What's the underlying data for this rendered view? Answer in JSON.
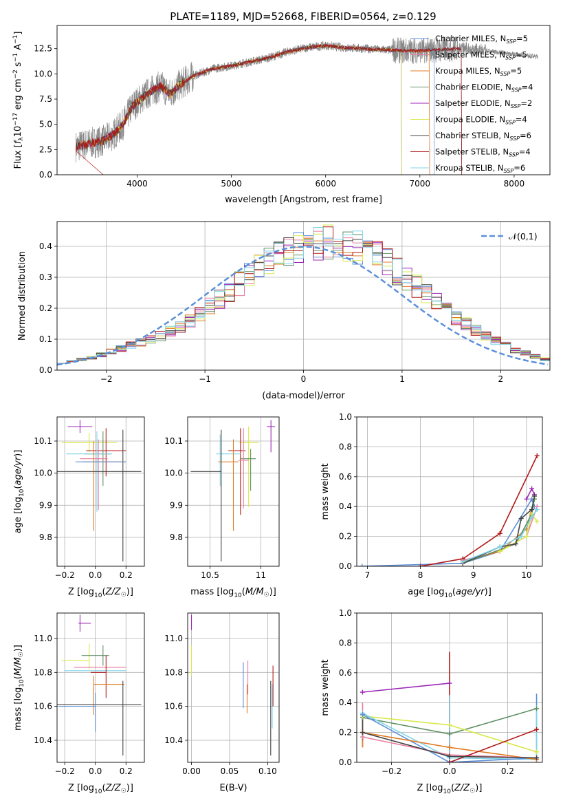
{
  "figure_title": "PLATE=1189, MJD=52668, FIBERID=0564, z=0.129",
  "colors": {
    "Chabrier MILES": "#5b8fd9",
    "Salpeter MILES": "#e87d9c",
    "Kroupa MILES": "#e07b22",
    "Chabrier ELODIE": "#5e8f63",
    "Salpeter ELODIE": "#9b27b5",
    "Kroupa ELODIE": "#d9e84b",
    "Chabrier STELIB": "#444444",
    "Salpeter STELIB": "#b21818",
    "Kroupa STELIB": "#7fd4e8",
    "data": "#888888",
    "normal": "#5b8fd9"
  },
  "chart_data": [
    {
      "id": "spectrum",
      "type": "line",
      "title": "",
      "xlabel": "wavelength [Angstrom, rest frame]",
      "ylabel": "Flux [f_λ 10^-17 erg cm^-2 s^-1 A^-1]",
      "xlim": [
        3150,
        8380
      ],
      "ylim": [
        0,
        14.8
      ],
      "xticks": [
        4000,
        5000,
        6000,
        7000,
        8000
      ],
      "yticks": [
        0.0,
        2.5,
        5.0,
        7.5,
        10.0,
        12.5
      ],
      "grid": false,
      "legend_position": "top-right",
      "legend": [
        "Chabrier MILES, N_SSP=5",
        "Salpeter MILES, N_SSP=5",
        "Kroupa MILES, N_SSP=5",
        "Chabrier ELODIE, N_SSP=4",
        "Salpeter ELODIE, N_SSP=2",
        "Kroupa ELODIE, N_SSP=4",
        "Chabrier STELIB, N_SSP=6",
        "Salpeter STELIB, N_SSP=4",
        "Kroupa STELIB, N_SSP=6"
      ],
      "continuum": {
        "wavelength": [
          3350,
          3500,
          3650,
          3750,
          3850,
          3950,
          4050,
          4150,
          4250,
          4350,
          4450,
          4600,
          4800,
          5000,
          5200,
          5400,
          5600,
          5800,
          6000,
          6200,
          6400,
          6600,
          6800,
          7000,
          7200,
          7400
        ],
        "flux": [
          2.8,
          3.1,
          3.4,
          4.0,
          5.0,
          6.8,
          7.6,
          8.3,
          8.8,
          8.0,
          8.9,
          9.8,
          10.5,
          10.8,
          11.2,
          11.6,
          12.2,
          12.6,
          12.8,
          12.6,
          12.5,
          12.4,
          12.3,
          12.3,
          12.4,
          12.5
        ]
      },
      "data_extent": [
        3350,
        8250
      ]
    },
    {
      "id": "residuals",
      "type": "line",
      "title": "",
      "xlabel": "(data-model)/error",
      "ylabel": "Normed distribution",
      "xlim": [
        -2.5,
        2.5
      ],
      "ylim": [
        0,
        0.48
      ],
      "xticks": [
        -2,
        -1,
        0,
        1,
        2
      ],
      "yticks": [
        0.0,
        0.1,
        0.2,
        0.3,
        0.4
      ],
      "grid": true,
      "legend_position": "top-right",
      "legend": [
        "𝒩(0,1)"
      ],
      "bin_width": 0.1,
      "bin_start": -2.5,
      "histogram": [
        0.025,
        0.03,
        0.035,
        0.04,
        0.05,
        0.06,
        0.07,
        0.08,
        0.09,
        0.1,
        0.11,
        0.125,
        0.14,
        0.16,
        0.18,
        0.205,
        0.23,
        0.255,
        0.28,
        0.305,
        0.33,
        0.35,
        0.37,
        0.385,
        0.395,
        0.4,
        0.41,
        0.415,
        0.41,
        0.405,
        0.395,
        0.38,
        0.365,
        0.345,
        0.32,
        0.295,
        0.27,
        0.245,
        0.22,
        0.195,
        0.17,
        0.15,
        0.13,
        0.11,
        0.095,
        0.08,
        0.065,
        0.055,
        0.045,
        0.035
      ]
    },
    {
      "id": "age-vs-Z",
      "type": "scatter",
      "xlabel": "Z [log10(Z/Z☉)]",
      "ylabel": "age  [log10(age/yr)]",
      "xlim": [
        -0.25,
        0.32
      ],
      "ylim": [
        9.71,
        10.175
      ],
      "xticks": [
        -0.2,
        0.0,
        0.2
      ],
      "xtick_labels": [
        "−0.2",
        "0.0",
        "0.2"
      ],
      "yticks": [
        9.8,
        9.9,
        10.0,
        10.1
      ],
      "grid": true,
      "points": [
        {
          "series": "Salpeter ELODIE",
          "x": -0.1,
          "xlo": 0.08,
          "xhi": 0.08,
          "y": 10.145,
          "ylo": 0.02,
          "yhi": 0.02
        },
        {
          "series": "Kroupa ELODIE",
          "x": -0.04,
          "xlo": 0.18,
          "xhi": 0.18,
          "y": 10.095,
          "ylo": 0.03,
          "yhi": 0.03
        },
        {
          "series": "Salpeter STELIB",
          "x": 0.07,
          "xlo": 0.13,
          "xhi": 0.13,
          "y": 10.07,
          "ylo": 0.08,
          "yhi": 0.07
        },
        {
          "series": "Chabrier ELODIE",
          "x": 0.05,
          "xlo": 0.12,
          "xhi": 0.05,
          "y": 10.06,
          "ylo": 0.1,
          "yhi": 0.07
        },
        {
          "series": "Kroupa STELIB",
          "x": 0.01,
          "xlo": 0.2,
          "xhi": 0.1,
          "y": 10.06,
          "ylo": 0.18,
          "yhi": 0.07
        },
        {
          "series": "Salpeter MILES",
          "x": 0.02,
          "xlo": 0.12,
          "xhi": 0.06,
          "y": 10.045,
          "ylo": 0.16,
          "yhi": 0.06
        },
        {
          "series": "Kroupa MILES",
          "x": -0.01,
          "xlo": 0.07,
          "xhi": 0.21,
          "y": 10.035,
          "ylo": 0.215,
          "yhi": 0.065
        },
        {
          "series": "Chabrier STELIB",
          "x": 0.18,
          "xlo": 0.44,
          "xhi": 0.12,
          "y": 10.005,
          "ylo": 0.28,
          "yhi": 0.13
        },
        {
          "series": "Chabrier MILES",
          "x": 0.0,
          "xlo": 0.13,
          "xhi": 0.2,
          "y": 10.035,
          "ylo": 0.0,
          "yhi": 0.0
        }
      ]
    },
    {
      "id": "age-vs-mass",
      "type": "scatter",
      "xlabel": "mass [log10(M/M☉)]",
      "ylabel": "",
      "xlim": [
        10.28,
        11.18
      ],
      "ylim": [
        9.71,
        10.175
      ],
      "xticks": [
        10.5,
        11.0
      ],
      "yticks": [
        9.8,
        9.9,
        10.0,
        10.1
      ],
      "grid": true,
      "points": [
        {
          "series": "Salpeter ELODIE",
          "x": 11.1,
          "xlo": 0.04,
          "xhi": 0.04,
          "y": 10.145,
          "ylo": 0.08,
          "yhi": 0.02
        },
        {
          "series": "Kroupa ELODIE",
          "x": 10.88,
          "xlo": 0.1,
          "xhi": 0.1,
          "y": 10.095,
          "ylo": 0.2,
          "yhi": 0.05
        },
        {
          "series": "Salpeter STELIB",
          "x": 10.8,
          "xlo": 0.12,
          "xhi": 0.05,
          "y": 10.07,
          "ylo": 0.2,
          "yhi": 0.07
        },
        {
          "series": "Chabrier ELODIE",
          "x": 10.9,
          "xlo": 0.1,
          "xhi": 0.05,
          "y": 10.045,
          "ylo": 0.1,
          "yhi": 0.03
        },
        {
          "series": "Kroupa STELIB",
          "x": 10.6,
          "xlo": 0.04,
          "xhi": 0.2,
          "y": 10.06,
          "ylo": 0.1,
          "yhi": 0.06
        },
        {
          "series": "Salpeter MILES",
          "x": 10.83,
          "xlo": 0.05,
          "xhi": 0.05,
          "y": 10.04,
          "ylo": 0.15,
          "yhi": 0.1
        },
        {
          "series": "Kroupa MILES",
          "x": 10.73,
          "xlo": 0.15,
          "xhi": 0.05,
          "y": 10.035,
          "ylo": 0.215,
          "yhi": 0.07
        },
        {
          "series": "Chabrier STELIB",
          "x": 10.61,
          "xlo": 0.3,
          "xhi": 0.0,
          "y": 10.005,
          "ylo": 0.28,
          "yhi": 0.13
        },
        {
          "series": "Chabrier MILES",
          "x": 10.62,
          "xlo": 0.0,
          "xhi": 0.0,
          "y": 10.0,
          "ylo": 0.0,
          "yhi": 0.0
        }
      ]
    },
    {
      "id": "weight-vs-age",
      "type": "line",
      "xlabel": "age  [log10(age/yr)]",
      "ylabel": "mass weight",
      "xlim": [
        6.8,
        10.3
      ],
      "ylim": [
        0,
        1
      ],
      "xticks": [
        7,
        8,
        9,
        10
      ],
      "yticks": [
        0.0,
        0.2,
        0.4,
        0.6,
        0.8,
        1.0
      ],
      "grid": true,
      "series": [
        {
          "name": "Chabrier MILES",
          "x": [
            6.9,
            8.8,
            9.5,
            10.1,
            10.15
          ],
          "y": [
            0.0,
            0.02,
            0.1,
            0.45,
            0.4
          ]
        },
        {
          "name": "Salpeter MILES",
          "x": [
            8.8,
            9.5,
            10.0,
            10.2
          ],
          "y": [
            0.04,
            0.1,
            0.2,
            0.4
          ]
        },
        {
          "name": "Kroupa MILES",
          "x": [
            8.8,
            9.5,
            10.0,
            10.15
          ],
          "y": [
            0.03,
            0.1,
            0.25,
            0.45
          ]
        },
        {
          "name": "Chabrier ELODIE",
          "x": [
            8.8,
            9.8,
            10.1,
            10.15
          ],
          "y": [
            0.02,
            0.15,
            0.35,
            0.45
          ]
        },
        {
          "name": "Salpeter ELODIE",
          "x": [
            10.0,
            10.1,
            10.15
          ],
          "y": [
            0.45,
            0.52,
            0.48
          ]
        },
        {
          "name": "Kroupa ELODIE",
          "x": [
            9.5,
            10.0,
            10.1,
            10.2
          ],
          "y": [
            0.1,
            0.2,
            0.35,
            0.3
          ]
        },
        {
          "name": "Chabrier STELIB",
          "x": [
            8.8,
            9.5,
            9.8,
            9.9,
            10.1,
            10.15
          ],
          "y": [
            0.02,
            0.13,
            0.15,
            0.32,
            0.38,
            0.47
          ]
        },
        {
          "name": "Salpeter STELIB",
          "x": [
            8.0,
            8.8,
            9.5,
            10.2
          ],
          "y": [
            0.0,
            0.05,
            0.22,
            0.74
          ]
        },
        {
          "name": "Kroupa STELIB",
          "x": [
            8.8,
            9.5,
            9.9,
            10.1,
            10.2
          ],
          "y": [
            0.03,
            0.13,
            0.2,
            0.33,
            0.38
          ]
        }
      ]
    },
    {
      "id": "mass-vs-Z",
      "type": "scatter",
      "xlabel": "Z [log10(Z/Z☉)]",
      "ylabel": "mass [log10(M/M☉)]",
      "xlim": [
        -0.25,
        0.32
      ],
      "ylim": [
        10.27,
        11.15
      ],
      "xticks": [
        -0.2,
        0.0,
        0.2
      ],
      "xtick_labels": [
        "−0.2",
        "0.0",
        "0.2"
      ],
      "yticks": [
        10.4,
        10.6,
        10.8,
        11.0
      ],
      "grid": true,
      "points": [
        {
          "series": "Salpeter ELODIE",
          "x": -0.1,
          "xlo": 0.01,
          "xhi": 0.07,
          "y": 11.09,
          "ylo": 0.05,
          "yhi": 0.05
        },
        {
          "series": "Kroupa ELODIE",
          "x": -0.04,
          "xlo": 0.18,
          "xhi": 0.0,
          "y": 10.87,
          "ylo": 0.05,
          "yhi": 0.1
        },
        {
          "series": "Chabrier ELODIE",
          "x": 0.05,
          "xlo": 0.14,
          "xhi": 0.04,
          "y": 10.9,
          "ylo": 0.06,
          "yhi": 0.06
        },
        {
          "series": "Salpeter MILES",
          "x": 0.02,
          "xlo": 0.16,
          "xhi": 0.18,
          "y": 10.83,
          "ylo": 0.0,
          "yhi": 0.0
        },
        {
          "series": "Kroupa STELIB",
          "x": 0.0,
          "xlo": 0.2,
          "xhi": 0.2,
          "y": 10.81,
          "ylo": 0.0,
          "yhi": 0.0
        },
        {
          "series": "Salpeter STELIB",
          "x": 0.07,
          "xlo": 0.1,
          "xhi": 0.0,
          "y": 10.8,
          "ylo": 0.15,
          "yhi": 0.1
        },
        {
          "series": "Kroupa MILES",
          "x": -0.01,
          "xlo": 0.0,
          "xhi": 0.2,
          "y": 10.73,
          "ylo": 0.18,
          "yhi": 0.05
        },
        {
          "series": "Chabrier STELIB",
          "x": 0.18,
          "xlo": 0.44,
          "xhi": 0.12,
          "y": 10.61,
          "ylo": 0.3,
          "yhi": 0.14
        },
        {
          "series": "Chabrier MILES",
          "x": 0.0,
          "xlo": 0.24,
          "xhi": 0.0,
          "y": 10.6,
          "ylo": 0.15,
          "yhi": 0.08
        }
      ]
    },
    {
      "id": "mass-vs-EBV",
      "type": "scatter",
      "xlabel": "E(B-V)",
      "ylabel": "",
      "xlim": [
        -0.005,
        0.115
      ],
      "ylim": [
        10.27,
        11.15
      ],
      "xticks": [
        0.0,
        0.05,
        0.1
      ],
      "xtick_labels": [
        "0.00",
        "0.05",
        "0.10"
      ],
      "yticks": [
        10.4,
        10.6,
        10.8,
        11.0
      ],
      "grid": true,
      "points": [
        {
          "series": "Salpeter ELODIE",
          "x": 0.0,
          "y": 11.09,
          "ylo": 0.04,
          "yhi": 0.05
        },
        {
          "series": "Kroupa ELODIE",
          "x": 0.0,
          "y": 10.88,
          "ylo": 0.1,
          "yhi": 0.08
        },
        {
          "series": "Chabrier MILES",
          "x": 0.068,
          "y": 10.72,
          "ylo": 0.13,
          "yhi": 0.14
        },
        {
          "series": "Salpeter MILES",
          "x": 0.074,
          "y": 10.76,
          "ylo": 0.09,
          "yhi": 0.11
        },
        {
          "series": "Kroupa MILES",
          "x": 0.073,
          "y": 10.65,
          "ylo": 0.09,
          "yhi": 0.08
        },
        {
          "series": "Chabrier STELIB",
          "x": 0.104,
          "y": 10.53,
          "ylo": 0.22,
          "yhi": 0.22
        },
        {
          "series": "Salpeter STELIB",
          "x": 0.107,
          "y": 10.72,
          "ylo": 0.12,
          "yhi": 0.12
        },
        {
          "series": "Kroupa STELIB",
          "x": 0.106,
          "y": 10.6,
          "ylo": 0.13,
          "yhi": 0.13
        }
      ]
    },
    {
      "id": "weight-vs-Z",
      "type": "line",
      "xlabel": "Z [log10(Z/Z☉)]",
      "ylabel": "mass weight",
      "xlim": [
        -0.32,
        0.32
      ],
      "ylim": [
        0,
        1
      ],
      "xticks": [
        -0.2,
        0.0,
        0.2
      ],
      "xtick_labels": [
        "−0.2",
        "0.0",
        "0.2"
      ],
      "yticks": [
        0.0,
        0.2,
        0.4,
        0.6,
        0.8,
        1.0
      ],
      "grid": true,
      "series": [
        {
          "name": "Salpeter ELODIE",
          "x": [
            -0.3,
            0.0
          ],
          "y": [
            0.47,
            0.53
          ]
        },
        {
          "name": "Chabrier ELODIE",
          "x": [
            -0.3,
            0.0,
            0.3
          ],
          "y": [
            0.3,
            0.19,
            0.36
          ]
        },
        {
          "name": "Kroupa ELODIE",
          "x": [
            -0.3,
            0.0,
            0.3
          ],
          "y": [
            0.31,
            0.25,
            0.07
          ]
        },
        {
          "name": "Kroupa STELIB",
          "x": [
            -0.3,
            0.0,
            0.3
          ],
          "y": [
            0.33,
            0.03,
            0.02
          ]
        },
        {
          "name": "Chabrier MILES",
          "x": [
            -0.3,
            0.0,
            0.3
          ],
          "y": [
            0.32,
            0.0,
            0.03
          ]
        },
        {
          "name": "Kroupa MILES",
          "x": [
            -0.3,
            0.0,
            0.3
          ],
          "y": [
            0.2,
            0.1,
            0.02
          ]
        },
        {
          "name": "Salpeter MILES",
          "x": [
            -0.3,
            0.0,
            0.3
          ],
          "y": [
            0.17,
            0.05,
            0.03
          ]
        },
        {
          "name": "Salpeter STELIB",
          "x": [
            0.0,
            0.3
          ],
          "y": [
            0.0,
            0.22
          ]
        },
        {
          "name": "Chabrier STELIB",
          "x": [
            -0.3,
            0.0,
            0.3
          ],
          "y": [
            0.2,
            0.04,
            0.03
          ]
        }
      ],
      "verticals": [
        {
          "series": "Salpeter STELIB",
          "x": 0.0,
          "y0": 0.0,
          "y1": 0.74
        },
        {
          "series": "Kroupa STELIB",
          "x": 0.0,
          "y0": 0.0,
          "y1": 0.45
        },
        {
          "series": "Chabrier MILES",
          "x": 0.3,
          "y0": 0.0,
          "y1": 0.46
        },
        {
          "series": "Kroupa STELIB",
          "x": 0.3,
          "y0": 0.0,
          "y1": 0.38
        },
        {
          "series": "Salpeter MILES",
          "x": -0.3,
          "y0": 0.1,
          "y1": 0.4
        },
        {
          "series": "Kroupa MILES",
          "x": -0.3,
          "y0": 0.1,
          "y1": 0.3
        },
        {
          "series": "Chabrier STELIB",
          "x": -0.3,
          "y0": 0.15,
          "y1": 0.3
        }
      ]
    }
  ]
}
